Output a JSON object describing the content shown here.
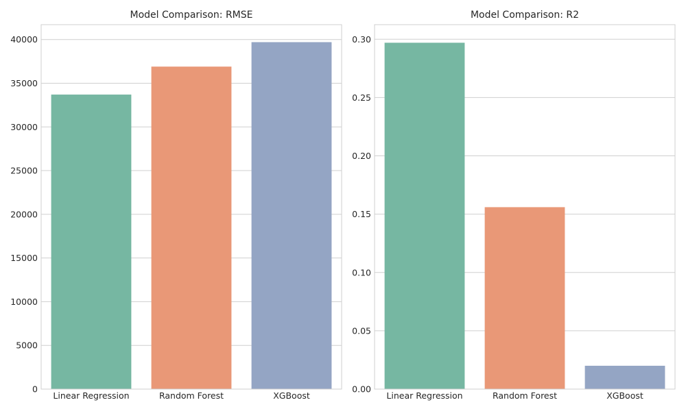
{
  "chart_data": [
    {
      "type": "bar",
      "title": "Model Comparison: RMSE",
      "categories": [
        "Linear Regression",
        "Random Forest",
        "XGBoost"
      ],
      "values": [
        33700,
        36900,
        39700
      ],
      "colors": [
        "#76b7a2",
        "#e99877",
        "#94a5c4"
      ],
      "ylim": [
        0,
        41700
      ],
      "yticks": [
        0,
        5000,
        10000,
        15000,
        20000,
        25000,
        30000,
        35000,
        40000
      ],
      "ytick_labels": [
        "0",
        "5000",
        "10000",
        "15000",
        "20000",
        "25000",
        "30000",
        "35000",
        "40000"
      ],
      "grid": true
    },
    {
      "type": "bar",
      "title": "Model Comparison: R2",
      "categories": [
        "Linear Regression",
        "Random Forest",
        "XGBoost"
      ],
      "values": [
        0.297,
        0.156,
        0.02
      ],
      "colors": [
        "#76b7a2",
        "#e99877",
        "#94a5c4"
      ],
      "ylim": [
        0,
        0.3125
      ],
      "yticks": [
        0,
        0.05,
        0.1,
        0.15,
        0.2,
        0.25,
        0.3
      ],
      "ytick_labels": [
        "0.00",
        "0.05",
        "0.10",
        "0.15",
        "0.20",
        "0.25",
        "0.30"
      ],
      "grid": true
    }
  ]
}
